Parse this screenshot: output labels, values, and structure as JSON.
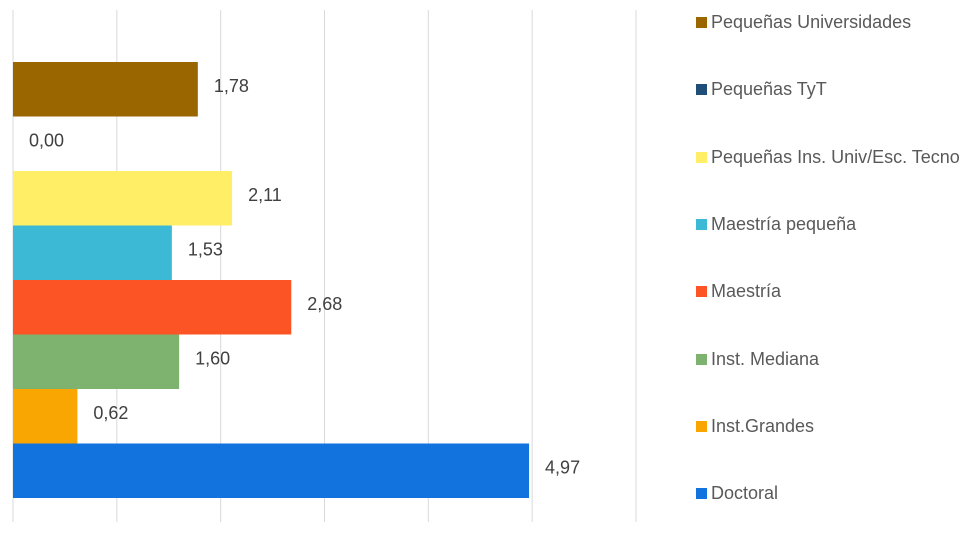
{
  "chart_data": {
    "type": "bar",
    "orientation": "horizontal",
    "categories": [
      "Pequeñas Universidades",
      "Pequeñas TyT",
      "Pequeñas Ins. Univ/Esc. Tecno",
      "Maestría pequeña",
      "Maestría",
      "Inst. Mediana",
      "Inst.Grandes",
      "Doctoral"
    ],
    "values": [
      1.78,
      0.0,
      2.11,
      1.53,
      2.68,
      1.6,
      0.62,
      4.97
    ],
    "value_labels": [
      "1,78",
      "0,00",
      "2,11",
      "1,53",
      "2,68",
      "1,60",
      "0,62",
      "4,97"
    ],
    "colors": [
      "#996600",
      "#1f4e79",
      "#ffee66",
      "#3cb9d5",
      "#fc5424",
      "#7db26f",
      "#f9a602",
      "#1273de"
    ],
    "xlim": [
      0,
      6
    ],
    "xticks": [
      0,
      1,
      2,
      3,
      4,
      5,
      6
    ],
    "grid": true,
    "legend": "right"
  }
}
